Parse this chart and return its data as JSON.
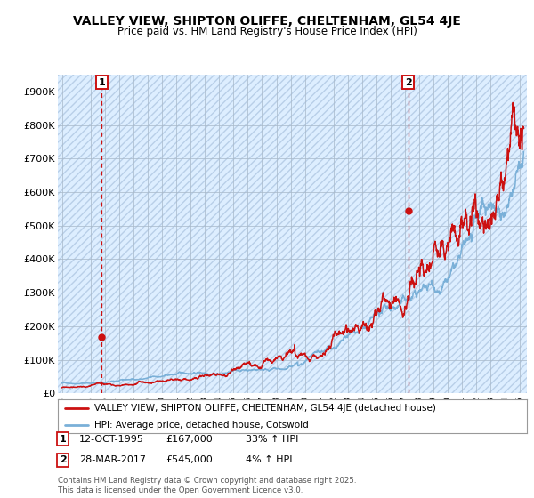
{
  "title": "VALLEY VIEW, SHIPTON OLIFFE, CHELTENHAM, GL54 4JE",
  "subtitle": "Price paid vs. HM Land Registry's House Price Index (HPI)",
  "ylim": [
    0,
    950000
  ],
  "yticks": [
    0,
    100000,
    200000,
    300000,
    400000,
    500000,
    600000,
    700000,
    800000,
    900000
  ],
  "ytick_labels": [
    "£0",
    "£100K",
    "£200K",
    "£300K",
    "£400K",
    "£500K",
    "£600K",
    "£700K",
    "£800K",
    "£900K"
  ],
  "xlim_start": 1992.7,
  "xlim_end": 2025.5,
  "hpi_color": "#7ab0d8",
  "price_color": "#cc1111",
  "marker1_date": 1995.78,
  "marker1_price": 167000,
  "marker1_label": "1",
  "marker2_date": 2017.23,
  "marker2_price": 545000,
  "marker2_label": "2",
  "legend_line1": "VALLEY VIEW, SHIPTON OLIFFE, CHELTENHAM, GL54 4JE (detached house)",
  "legend_line2": "HPI: Average price, detached house, Cotswold",
  "ann1_box": "1",
  "ann1_date": "12-OCT-1995",
  "ann1_price": "£167,000",
  "ann1_pct": "33% ↑ HPI",
  "ann2_box": "2",
  "ann2_date": "28-MAR-2017",
  "ann2_price": "£545,000",
  "ann2_pct": "4% ↑ HPI",
  "footer": "Contains HM Land Registry data © Crown copyright and database right 2025.\nThis data is licensed under the Open Government Licence v3.0.",
  "bg_color": "#ffffff",
  "plot_bg": "#ddeeff",
  "annotation_box_color": "#cc1111"
}
